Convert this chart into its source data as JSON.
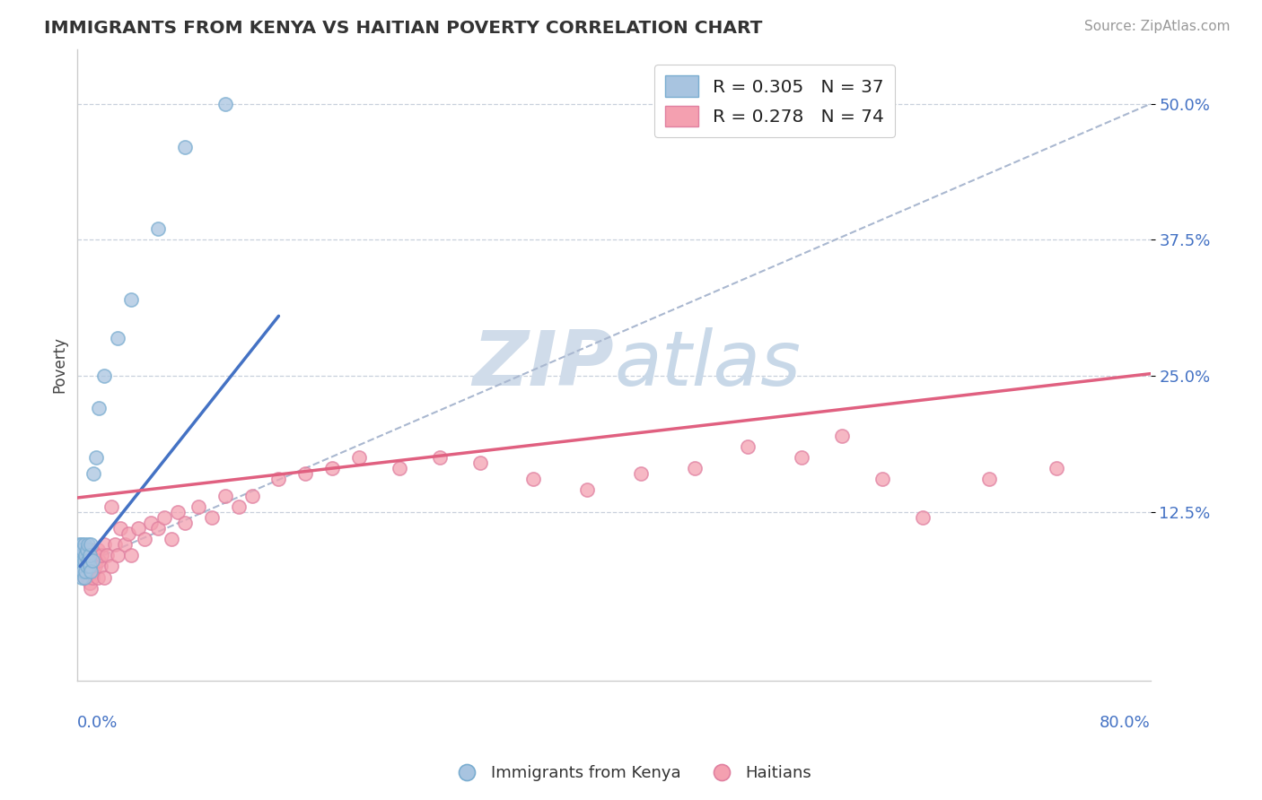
{
  "title": "IMMIGRANTS FROM KENYA VS HAITIAN POVERTY CORRELATION CHART",
  "source": "Source: ZipAtlas.com",
  "ylabel": "Poverty",
  "yticks": [
    "12.5%",
    "25.0%",
    "37.5%",
    "50.0%"
  ],
  "ytick_vals": [
    0.125,
    0.25,
    0.375,
    0.5
  ],
  "xlim": [
    0.0,
    0.8
  ],
  "ylim": [
    -0.03,
    0.55
  ],
  "legend_kenya": "R = 0.305   N = 37",
  "legend_haitian": "R = 0.278   N = 74",
  "kenya_color": "#a8c4e0",
  "kenya_edge_color": "#7aadd0",
  "haitian_color": "#f4a0b0",
  "haitian_edge_color": "#e080a0",
  "kenya_line_color": "#4472c4",
  "haitian_line_color": "#e06080",
  "ref_line_color": "#aab8d0",
  "watermark_color": "#d0dcea",
  "background": "#ffffff",
  "kenya_points_x": [
    0.001,
    0.001,
    0.001,
    0.002,
    0.002,
    0.002,
    0.002,
    0.003,
    0.003,
    0.003,
    0.003,
    0.004,
    0.004,
    0.004,
    0.005,
    0.005,
    0.005,
    0.006,
    0.006,
    0.007,
    0.007,
    0.008,
    0.008,
    0.009,
    0.009,
    0.01,
    0.01,
    0.011,
    0.012,
    0.014,
    0.016,
    0.02,
    0.03,
    0.04,
    0.06,
    0.08,
    0.11
  ],
  "kenya_points_y": [
    0.085,
    0.09,
    0.095,
    0.07,
    0.08,
    0.085,
    0.09,
    0.065,
    0.075,
    0.085,
    0.095,
    0.07,
    0.08,
    0.09,
    0.065,
    0.08,
    0.095,
    0.07,
    0.085,
    0.075,
    0.09,
    0.08,
    0.095,
    0.075,
    0.085,
    0.07,
    0.095,
    0.08,
    0.16,
    0.175,
    0.22,
    0.25,
    0.285,
    0.32,
    0.385,
    0.46,
    0.5
  ],
  "haitian_points_x": [
    0.001,
    0.002,
    0.003,
    0.004,
    0.004,
    0.005,
    0.005,
    0.006,
    0.006,
    0.007,
    0.007,
    0.007,
    0.008,
    0.008,
    0.009,
    0.009,
    0.009,
    0.01,
    0.01,
    0.01,
    0.01,
    0.011,
    0.011,
    0.012,
    0.012,
    0.013,
    0.014,
    0.015,
    0.015,
    0.016,
    0.017,
    0.018,
    0.02,
    0.02,
    0.022,
    0.025,
    0.025,
    0.028,
    0.03,
    0.032,
    0.035,
    0.038,
    0.04,
    0.045,
    0.05,
    0.055,
    0.06,
    0.065,
    0.07,
    0.075,
    0.08,
    0.09,
    0.1,
    0.11,
    0.12,
    0.13,
    0.15,
    0.17,
    0.19,
    0.21,
    0.24,
    0.27,
    0.3,
    0.34,
    0.38,
    0.42,
    0.46,
    0.5,
    0.54,
    0.57,
    0.6,
    0.63,
    0.68,
    0.73
  ],
  "haitian_points_y": [
    0.085,
    0.08,
    0.075,
    0.07,
    0.085,
    0.065,
    0.08,
    0.07,
    0.085,
    0.065,
    0.075,
    0.09,
    0.065,
    0.08,
    0.06,
    0.075,
    0.09,
    0.055,
    0.07,
    0.08,
    0.09,
    0.065,
    0.08,
    0.07,
    0.085,
    0.075,
    0.08,
    0.065,
    0.09,
    0.08,
    0.075,
    0.085,
    0.065,
    0.095,
    0.085,
    0.075,
    0.13,
    0.095,
    0.085,
    0.11,
    0.095,
    0.105,
    0.085,
    0.11,
    0.1,
    0.115,
    0.11,
    0.12,
    0.1,
    0.125,
    0.115,
    0.13,
    0.12,
    0.14,
    0.13,
    0.14,
    0.155,
    0.16,
    0.165,
    0.175,
    0.165,
    0.175,
    0.17,
    0.155,
    0.145,
    0.16,
    0.165,
    0.185,
    0.175,
    0.195,
    0.155,
    0.12,
    0.155,
    0.165
  ],
  "kenya_line_x": [
    0.002,
    0.15
  ],
  "kenya_line_y": [
    0.075,
    0.305
  ],
  "haitian_line_x": [
    0.0,
    0.8
  ],
  "haitian_line_y": [
    0.138,
    0.252
  ],
  "ref_line_x": [
    0.006,
    0.8
  ],
  "ref_line_y": [
    0.078,
    0.5
  ]
}
